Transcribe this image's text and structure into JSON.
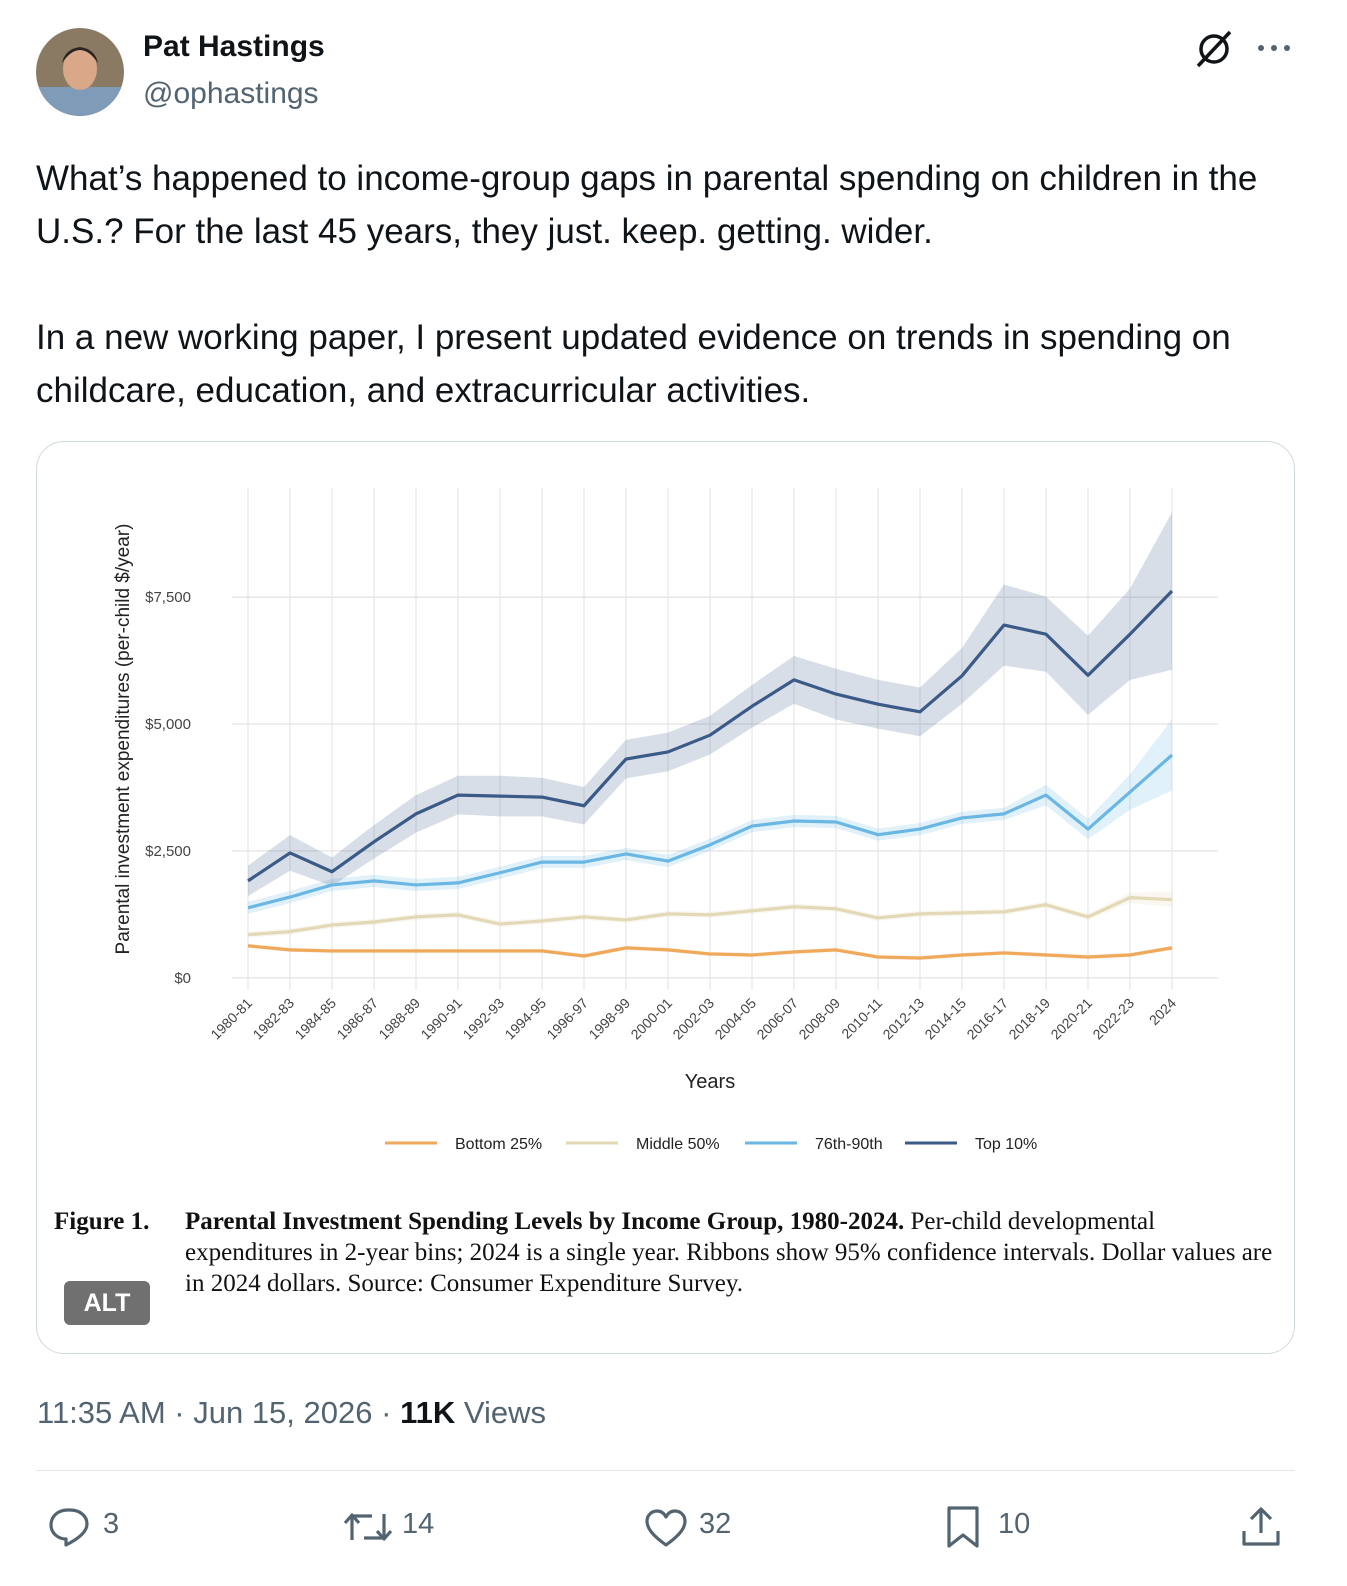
{
  "tweet": {
    "author": {
      "name": "Pat Hastings",
      "handle": "@ophastings"
    },
    "text": [
      "What’s happened to income-group gaps in parental spending on children in the U.S.? For the last 45 years, they just. keep. getting. wider.",
      "In a new working paper, I present updated evidence on trends in spending on childcare, education, and extracurricular activities."
    ],
    "image": {
      "alt_badge": "ALT",
      "caption": {
        "label": "Figure 1.",
        "title": "Parental Investment Spending Levels by Income Group, 1980-2024.",
        "body": "Per-child developmental expenditures in 2-year bins; 2024 is a single year. Ribbons show 95% confidence intervals. Dollar values are in 2024 dollars. Source: Consumer Expenditure Survey."
      }
    },
    "timestamp": "11:35 AM · Jun 15, 2026 ·",
    "views": {
      "count": "11K",
      "label": "Views"
    },
    "actions": {
      "replies": 3,
      "reposts": 14,
      "likes": 32,
      "bookmarks": 10
    }
  },
  "chart_data": {
    "type": "line",
    "y_label": "Parental investment expenditures (per-child $/year)",
    "x_label": "Years",
    "categories": [
      "1980-81",
      "1982-83",
      "1984-85",
      "1986-87",
      "1988-89",
      "1990-91",
      "1992-93",
      "1994-95",
      "1996-97",
      "1998-99",
      "2000-01",
      "2002-03",
      "2004-05",
      "2006-07",
      "2008-09",
      "2010-11",
      "2012-13",
      "2014-15",
      "2016-17",
      "2018-19",
      "2020-21",
      "2022-23",
      "2024"
    ],
    "series": [
      {
        "name": "Bottom 25%",
        "color": "#f0a95b",
        "values": [
          630,
          550,
          530,
          530,
          530,
          530,
          530,
          530,
          430,
          590,
          550,
          470,
          450,
          510,
          550,
          410,
          390,
          450,
          490,
          450,
          410,
          450,
          590
        ],
        "lower": [
          590,
          510,
          490,
          490,
          490,
          490,
          490,
          490,
          390,
          550,
          510,
          430,
          410,
          470,
          510,
          370,
          350,
          410,
          450,
          410,
          370,
          410,
          550
        ],
        "upper": [
          670,
          590,
          570,
          570,
          570,
          570,
          570,
          570,
          470,
          630,
          590,
          510,
          490,
          550,
          590,
          450,
          430,
          490,
          530,
          490,
          450,
          490,
          630
        ]
      },
      {
        "name": "Middle 50%",
        "color": "#e3d9b6",
        "values": [
          850,
          910,
          1040,
          1100,
          1200,
          1240,
          1060,
          1120,
          1200,
          1140,
          1260,
          1240,
          1320,
          1400,
          1360,
          1180,
          1260,
          1280,
          1300,
          1440,
          1200,
          1580,
          1540
        ],
        "lower": [
          790,
          850,
          980,
          1040,
          1140,
          1180,
          1000,
          1060,
          1140,
          1080,
          1200,
          1180,
          1260,
          1340,
          1300,
          1120,
          1200,
          1220,
          1240,
          1380,
          1140,
          1480,
          1390
        ],
        "upper": [
          910,
          970,
          1100,
          1160,
          1260,
          1300,
          1120,
          1180,
          1260,
          1200,
          1320,
          1300,
          1380,
          1460,
          1420,
          1240,
          1320,
          1340,
          1360,
          1500,
          1260,
          1680,
          1690
        ]
      },
      {
        "name": "76th-90th",
        "color": "#6bb7e3",
        "values": [
          1380,
          1590,
          1830,
          1910,
          1830,
          1870,
          2070,
          2280,
          2280,
          2440,
          2300,
          2620,
          2990,
          3090,
          3070,
          2820,
          2930,
          3150,
          3230,
          3600,
          2930,
          3660,
          4390
        ],
        "lower": [
          1260,
          1470,
          1710,
          1790,
          1710,
          1750,
          1950,
          2160,
          2160,
          2320,
          2180,
          2500,
          2870,
          2970,
          2950,
          2700,
          2810,
          3030,
          3110,
          3400,
          2730,
          3310,
          3690
        ],
        "upper": [
          1500,
          1710,
          1950,
          2030,
          1950,
          1990,
          2190,
          2400,
          2400,
          2560,
          2420,
          2740,
          3110,
          3210,
          3190,
          2940,
          3050,
          3270,
          3350,
          3800,
          3130,
          4010,
          5090
        ]
      },
      {
        "name": "Top 10%",
        "color": "#3a5a88",
        "values": [
          1910,
          2460,
          2090,
          2680,
          3230,
          3600,
          3580,
          3560,
          3390,
          4310,
          4450,
          4780,
          5350,
          5870,
          5590,
          5390,
          5240,
          5950,
          6950,
          6770,
          5960,
          6770,
          7620
        ],
        "lower": [
          1610,
          2110,
          1810,
          2350,
          2860,
          3220,
          3180,
          3180,
          3020,
          3930,
          4070,
          4400,
          4930,
          5400,
          5090,
          4910,
          4760,
          5400,
          6150,
          6030,
          5180,
          5870,
          6070
        ],
        "upper": [
          2210,
          2810,
          2370,
          3010,
          3600,
          3980,
          3980,
          3940,
          3760,
          4690,
          4830,
          5160,
          5770,
          6340,
          6090,
          5870,
          5720,
          6500,
          7750,
          7510,
          6740,
          7670,
          9170
        ]
      }
    ],
    "ylim": [
      -240,
      9650
    ],
    "yticks": [
      {
        "value": 0,
        "label": "$0"
      },
      {
        "value": 2500,
        "label": "$2,500"
      },
      {
        "value": 5000,
        "label": "$5,000"
      },
      {
        "value": 7500,
        "label": "$7,500"
      }
    ],
    "grid": true,
    "legend": "bottom"
  }
}
